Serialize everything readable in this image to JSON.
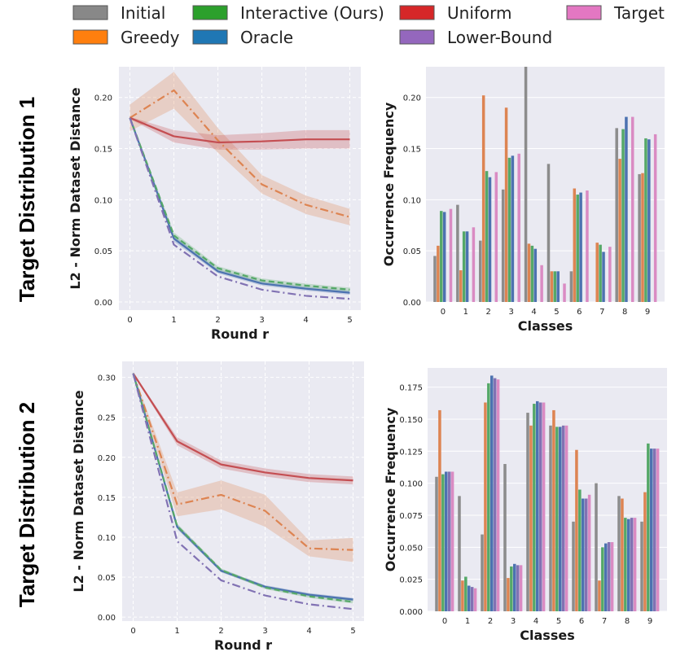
{
  "legend": [
    {
      "label": "Initial",
      "color": "#888888"
    },
    {
      "label": "Interactive (Ours)",
      "color": "#2ca02c"
    },
    {
      "label": "Uniform",
      "color": "#d62728"
    },
    {
      "label": "Target",
      "color": "#e377c2"
    },
    {
      "label": "Greedy",
      "color": "#ff7f0e"
    },
    {
      "label": "Oracle",
      "color": "#1f77b4"
    },
    {
      "label": "Lower-Bound",
      "color": "#9467bd"
    }
  ],
  "row_labels": [
    "Target Distribution 1",
    "Target Distribution 2"
  ],
  "chart_data": [
    {
      "type": "line",
      "row_label": "Target Distribution 1",
      "xlabel": "Round r",
      "ylabel": "L2 - Norm Dataset Distance",
      "x": [
        0,
        1,
        2,
        3,
        4,
        5
      ],
      "xticks": [
        "0",
        "1",
        "2",
        "3",
        "4",
        "5"
      ],
      "ylim": [
        -0.008,
        0.23
      ],
      "yticks": [
        "0.00",
        "0.05",
        "0.10",
        "0.15",
        "0.20"
      ],
      "grid": true,
      "series": [
        {
          "name": "Greedy",
          "color": "#dd8452",
          "style": "dashdot",
          "values": [
            0.18,
            0.207,
            0.158,
            0.115,
            0.095,
            0.083
          ],
          "band": [
            0.013,
            0.018,
            0.012,
            0.009,
            0.009,
            0.008
          ]
        },
        {
          "name": "Uniform",
          "color": "#c44e52",
          "style": "solid",
          "values": [
            0.18,
            0.162,
            0.156,
            0.157,
            0.159,
            0.159
          ],
          "band": [
            0.001,
            0.006,
            0.007,
            0.008,
            0.009,
            0.009
          ]
        },
        {
          "name": "Oracle",
          "color": "#4c72b0",
          "style": "solid",
          "values": [
            0.18,
            0.062,
            0.03,
            0.018,
            0.013,
            0.009
          ],
          "band": [
            0.001,
            0.003,
            0.002,
            0.002,
            0.002,
            0.002
          ]
        },
        {
          "name": "Interactive (Ours)",
          "color": "#55a868",
          "style": "dashed",
          "values": [
            0.18,
            0.065,
            0.033,
            0.021,
            0.016,
            0.012
          ],
          "band": [
            0.001,
            0.003,
            0.002,
            0.002,
            0.002,
            0.002
          ]
        },
        {
          "name": "Lower-Bound",
          "color": "#8172b3",
          "style": "dashdot",
          "values": [
            0.18,
            0.056,
            0.025,
            0.012,
            0.006,
            0.003
          ],
          "band": [
            0,
            0,
            0,
            0,
            0,
            0
          ]
        }
      ]
    },
    {
      "type": "bar",
      "row_label": "Target Distribution 1",
      "xlabel": "Classes",
      "ylabel": "Occurrence Frequency",
      "categories": [
        "0",
        "1",
        "2",
        "3",
        "4",
        "5",
        "6",
        "7",
        "8",
        "9"
      ],
      "ylim": [
        0,
        0.23
      ],
      "yticks": [
        "0.00",
        "0.05",
        "0.10",
        "0.15",
        "0.20"
      ],
      "series": [
        {
          "name": "Initial",
          "color": "#8c8c8c",
          "values": [
            0.045,
            0.095,
            0.06,
            0.11,
            0.232,
            0.135,
            0.03,
            0.0,
            0.17,
            0.125
          ]
        },
        {
          "name": "Greedy",
          "color": "#dd8452",
          "values": [
            0.055,
            0.031,
            0.202,
            0.19,
            0.057,
            0.03,
            0.111,
            0.058,
            0.14,
            0.126
          ]
        },
        {
          "name": "Interactive (Ours)",
          "color": "#55a868",
          "values": [
            0.089,
            0.069,
            0.128,
            0.141,
            0.055,
            0.03,
            0.105,
            0.056,
            0.169,
            0.16
          ]
        },
        {
          "name": "Oracle",
          "color": "#4c72b0",
          "values": [
            0.088,
            0.069,
            0.122,
            0.143,
            0.052,
            0.03,
            0.107,
            0.049,
            0.181,
            0.159
          ]
        },
        {
          "name": "Lower-Bound",
          "color": "#8172b3",
          "values": [
            0.0,
            0.0,
            0.0,
            0.0,
            0.0,
            0.0,
            0.0,
            0.0,
            0.0,
            0.0
          ]
        },
        {
          "name": "Target",
          "color": "#da8bc3",
          "values": [
            0.091,
            0.073,
            0.127,
            0.145,
            0.036,
            0.018,
            0.109,
            0.054,
            0.181,
            0.164
          ]
        }
      ]
    },
    {
      "type": "line",
      "row_label": "Target Distribution 2",
      "xlabel": "Round r",
      "ylabel": "L2 - Norm Dataset Distance",
      "x": [
        0,
        1,
        2,
        3,
        4,
        5
      ],
      "xticks": [
        "0",
        "1",
        "2",
        "3",
        "4",
        "5"
      ],
      "ylim": [
        -0.005,
        0.32
      ],
      "yticks": [
        "0.00",
        "0.05",
        "0.10",
        "0.15",
        "0.20",
        "0.25",
        "0.30"
      ],
      "grid": true,
      "series": [
        {
          "name": "Greedy",
          "color": "#dd8452",
          "style": "dashdot",
          "values": [
            0.305,
            0.141,
            0.153,
            0.133,
            0.086,
            0.084
          ],
          "band": [
            0.001,
            0.015,
            0.018,
            0.02,
            0.01,
            0.015
          ]
        },
        {
          "name": "Uniform",
          "color": "#c44e52",
          "style": "solid",
          "values": [
            0.305,
            0.22,
            0.191,
            0.181,
            0.174,
            0.171
          ],
          "band": [
            0.001,
            0.005,
            0.005,
            0.005,
            0.005,
            0.005
          ]
        },
        {
          "name": "Oracle",
          "color": "#4c72b0",
          "style": "solid",
          "values": [
            0.305,
            0.113,
            0.058,
            0.038,
            0.028,
            0.022
          ],
          "band": [
            0.001,
            0.003,
            0.002,
            0.002,
            0.002,
            0.002
          ]
        },
        {
          "name": "Interactive (Ours)",
          "color": "#55a868",
          "style": "dashed",
          "values": [
            0.305,
            0.114,
            0.059,
            0.037,
            0.026,
            0.019
          ],
          "band": [
            0.001,
            0.003,
            0.002,
            0.002,
            0.002,
            0.002
          ]
        },
        {
          "name": "Lower-Bound",
          "color": "#8172b3",
          "style": "dashdot",
          "values": [
            0.305,
            0.095,
            0.046,
            0.027,
            0.016,
            0.01
          ],
          "band": [
            0,
            0,
            0,
            0,
            0,
            0
          ]
        }
      ]
    },
    {
      "type": "bar",
      "row_label": "Target Distribution 2",
      "xlabel": "Classes",
      "ylabel": "Occurrence Frequency",
      "categories": [
        "0",
        "1",
        "2",
        "3",
        "4",
        "5",
        "6",
        "7",
        "8",
        "9"
      ],
      "ylim": [
        0,
        0.19
      ],
      "yticks": [
        "0.000",
        "0.025",
        "0.050",
        "0.075",
        "0.100",
        "0.125",
        "0.150",
        "0.175"
      ],
      "series": [
        {
          "name": "Initial",
          "color": "#8c8c8c",
          "values": [
            0.105,
            0.09,
            0.06,
            0.115,
            0.155,
            0.145,
            0.07,
            0.1,
            0.09,
            0.07
          ]
        },
        {
          "name": "Greedy",
          "color": "#dd8452",
          "values": [
            0.157,
            0.024,
            0.163,
            0.026,
            0.145,
            0.157,
            0.126,
            0.024,
            0.088,
            0.093
          ]
        },
        {
          "name": "Interactive (Ours)",
          "color": "#55a868",
          "values": [
            0.107,
            0.027,
            0.178,
            0.035,
            0.162,
            0.144,
            0.095,
            0.05,
            0.073,
            0.131
          ]
        },
        {
          "name": "Oracle",
          "color": "#4c72b0",
          "values": [
            0.109,
            0.02,
            0.184,
            0.037,
            0.164,
            0.144,
            0.088,
            0.053,
            0.072,
            0.127
          ]
        },
        {
          "name": "Lower-Bound",
          "color": "#8172b3",
          "values": [
            0.109,
            0.019,
            0.182,
            0.036,
            0.163,
            0.145,
            0.088,
            0.054,
            0.073,
            0.127
          ]
        },
        {
          "name": "Target",
          "color": "#da8bc3",
          "values": [
            0.109,
            0.018,
            0.181,
            0.036,
            0.163,
            0.145,
            0.091,
            0.054,
            0.073,
            0.127
          ]
        }
      ]
    }
  ]
}
